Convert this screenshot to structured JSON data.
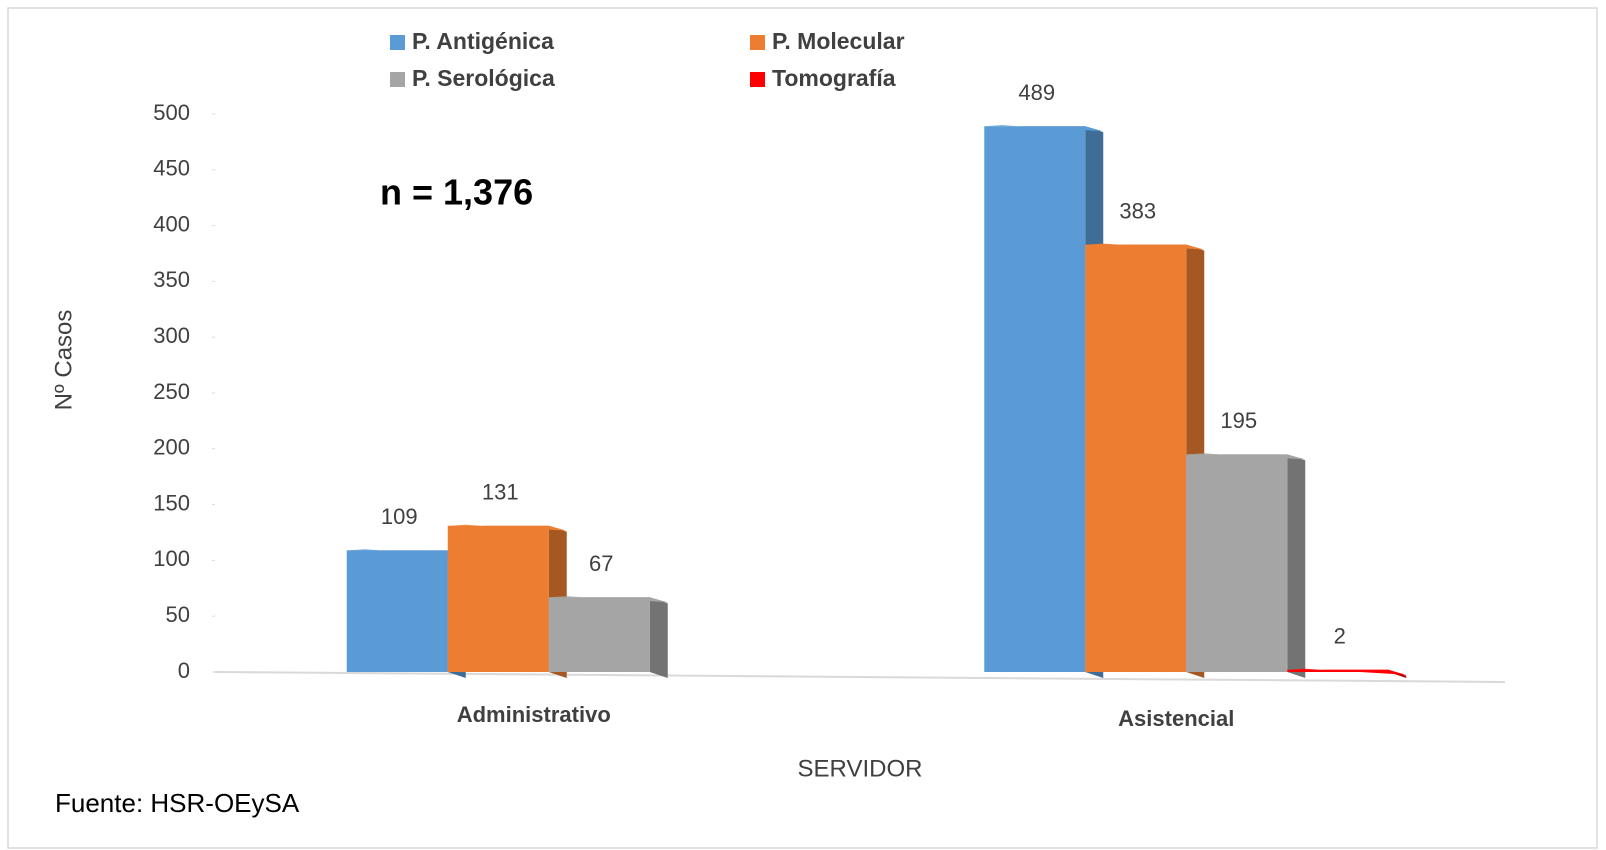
{
  "chart_data": {
    "type": "bar",
    "annotation": "n = 1,376",
    "source": "Fuente: HSR-OEySA",
    "xlabel": "SERVIDOR",
    "ylabel": "Nº Casos",
    "categories": [
      "Administrativo",
      "Asistencial"
    ],
    "series": [
      {
        "name": "P. Antigénica",
        "color": "#5b9bd5",
        "values": [
          109,
          489
        ]
      },
      {
        "name": "P. Molecular",
        "color": "#ed7d31",
        "values": [
          131,
          383
        ]
      },
      {
        "name": "P. Serológica",
        "color": "#a5a5a5",
        "values": [
          67,
          195
        ]
      },
      {
        "name": "Tomografía",
        "color": "#ff0000",
        "values": [
          null,
          2
        ]
      }
    ],
    "ylim": [
      0,
      500
    ],
    "yticks": [
      0,
      50,
      100,
      150,
      200,
      250,
      300,
      350,
      400,
      450,
      500
    ],
    "legend": "top"
  }
}
